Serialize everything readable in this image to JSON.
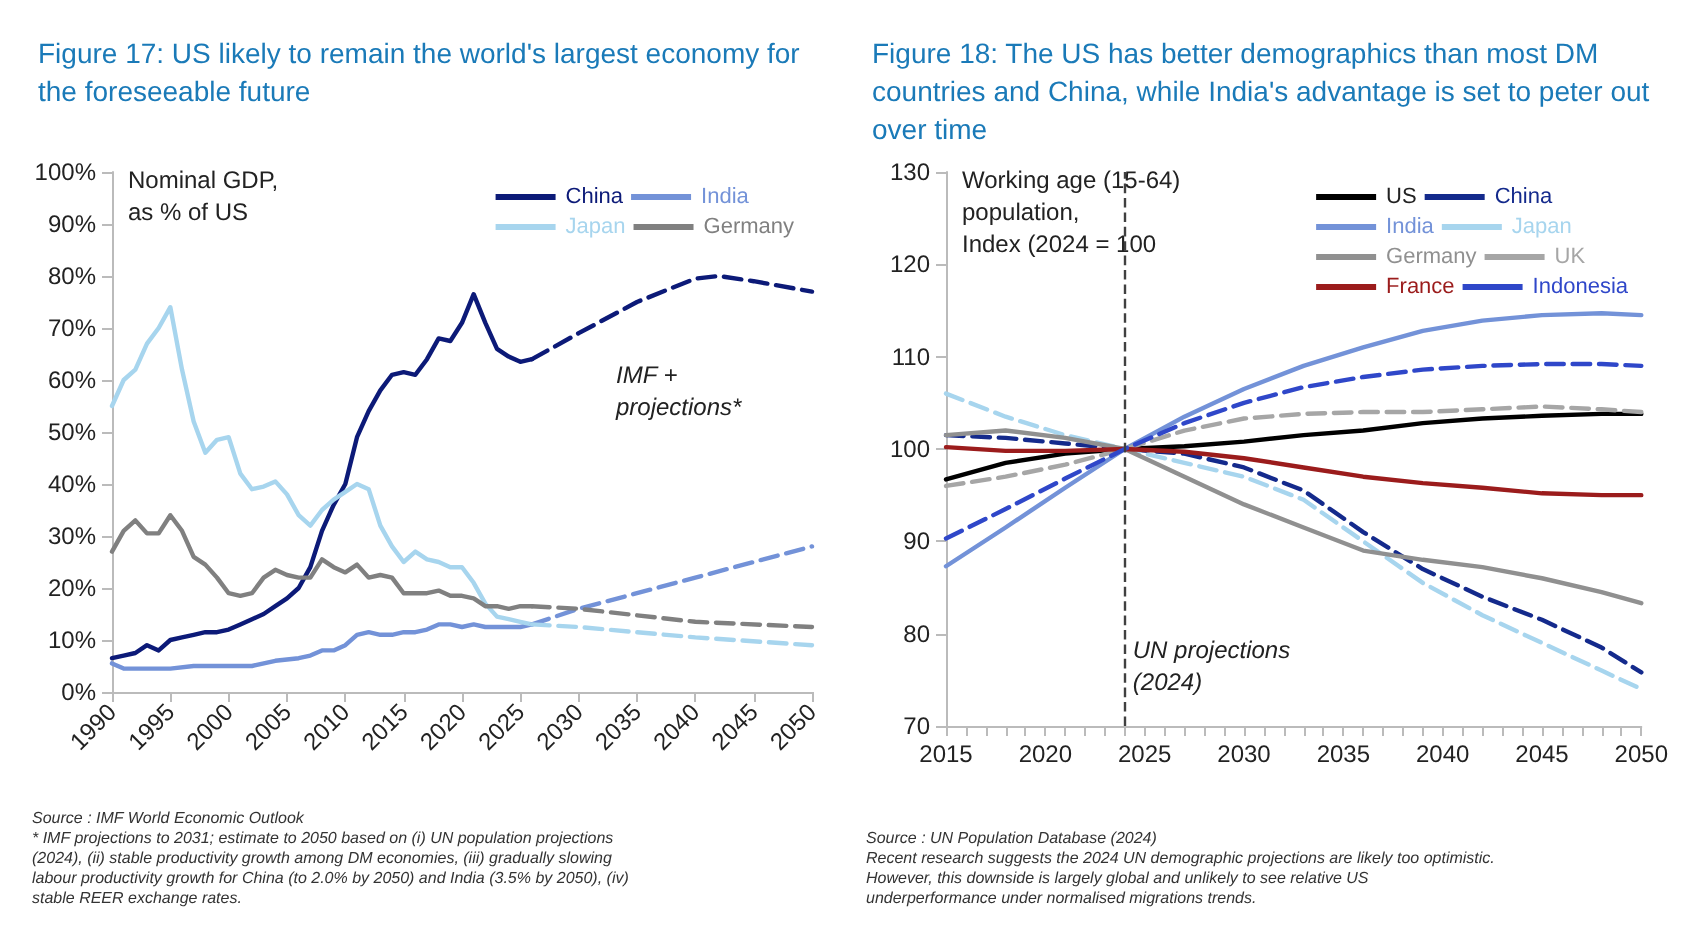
{
  "chart_data": [
    {
      "type": "line",
      "title": "Figure 17: US likely to remain the world's largest economy for the foreseeable future",
      "ylabel": "Nominal GDP,\nas % of US",
      "xlim": [
        1990,
        2050
      ],
      "xticks": [
        1990,
        1995,
        2000,
        2005,
        2010,
        2015,
        2020,
        2025,
        2030,
        2035,
        2040,
        2045,
        2050
      ],
      "ylim": [
        0,
        100
      ],
      "yticks": [
        {
          "value": 0,
          "label": "0%"
        },
        {
          "value": 10,
          "label": "10%"
        },
        {
          "value": 20,
          "label": "20%"
        },
        {
          "value": 30,
          "label": "30%"
        },
        {
          "value": 40,
          "label": "40%"
        },
        {
          "value": 50,
          "label": "50%"
        },
        {
          "value": 60,
          "label": "60%"
        },
        {
          "value": 70,
          "label": "70%"
        },
        {
          "value": 80,
          "label": "80%"
        },
        {
          "value": 90,
          "label": "90%"
        },
        {
          "value": 100,
          "label": "100%"
        }
      ],
      "grid": false,
      "legend": "top right",
      "marker": "none",
      "line_style": "solid",
      "series": [
        {
          "name": "China",
          "color": "#0c1a78",
          "x": [
            1990,
            1991,
            1992,
            1993,
            1994,
            1995,
            1996,
            1997,
            1998,
            1999,
            2000,
            2001,
            2002,
            2003,
            2004,
            2005,
            2006,
            2007,
            2008,
            2009,
            2010,
            2011,
            2012,
            2013,
            2014,
            2015,
            2016,
            2017,
            2018,
            2019,
            2020,
            2021,
            2022,
            2023,
            2024,
            2025,
            2026
          ],
          "values": [
            6.5,
            7,
            7.5,
            9,
            8,
            10,
            10.5,
            11,
            11.5,
            11.5,
            12,
            13,
            14,
            15,
            16.5,
            18,
            20,
            24,
            31,
            36,
            40,
            49,
            54,
            58,
            61,
            61.5,
            61,
            64,
            68,
            67.5,
            71,
            76.5,
            71,
            66,
            64.5,
            63.5,
            64
          ]
        },
        {
          "name": "India",
          "color": "#7392d8",
          "x": [
            1990,
            1991,
            1993,
            1995,
            1997,
            2000,
            2002,
            2004,
            2006,
            2007,
            2008,
            2009,
            2010,
            2011,
            2012,
            2013,
            2014,
            2015,
            2016,
            2017,
            2018,
            2019,
            2020,
            2021,
            2022,
            2023,
            2024,
            2025,
            2026
          ],
          "values": [
            5.5,
            4.5,
            4.5,
            4.5,
            5,
            5,
            5,
            6,
            6.5,
            7,
            8,
            8,
            9,
            11,
            11.5,
            11,
            11,
            11.5,
            11.5,
            12,
            13,
            13,
            12.5,
            13,
            12.5,
            12.5,
            12.5,
            12.5,
            13
          ]
        },
        {
          "name": "Japan",
          "color": "#a7d5ee",
          "x": [
            1990,
            1991,
            1992,
            1993,
            1994,
            1995,
            1996,
            1997,
            1998,
            1999,
            2000,
            2001,
            2002,
            2003,
            2004,
            2005,
            2006,
            2007,
            2008,
            2009,
            2010,
            2011,
            2012,
            2013,
            2014,
            2015,
            2016,
            2017,
            2018,
            2019,
            2020,
            2021,
            2022,
            2023,
            2024,
            2025,
            2026
          ],
          "values": [
            55,
            60,
            62,
            67,
            70,
            74,
            62,
            52,
            46,
            48.5,
            49,
            42,
            39,
            39.5,
            40.5,
            38,
            34,
            32,
            35,
            37,
            38.5,
            40,
            39,
            32,
            28,
            25,
            27,
            25.5,
            25,
            24,
            24,
            21,
            17,
            14.5,
            14,
            13.5,
            13
          ]
        },
        {
          "name": "Germany",
          "color": "#808080",
          "x": [
            1990,
            1991,
            1992,
            1993,
            1994,
            1995,
            1996,
            1997,
            1998,
            1999,
            2000,
            2001,
            2002,
            2003,
            2004,
            2005,
            2006,
            2007,
            2008,
            2009,
            2010,
            2011,
            2012,
            2013,
            2014,
            2015,
            2016,
            2017,
            2018,
            2019,
            2020,
            2021,
            2022,
            2023,
            2024,
            2025,
            2026
          ],
          "values": [
            27,
            31,
            33,
            30.5,
            30.5,
            34,
            31,
            26,
            24.5,
            22,
            19,
            18.5,
            19,
            22,
            23.5,
            22.5,
            22,
            22,
            25.5,
            24,
            23,
            24.5,
            22,
            22.5,
            22,
            19,
            19,
            19,
            19.5,
            18.5,
            18.5,
            18,
            16.5,
            16.5,
            16,
            16.5,
            16.5
          ]
        },
        {
          "color": "#0c1a78",
          "line_style": "dashed",
          "x": [
            2026,
            2030,
            2035,
            2040,
            2042,
            2045,
            2050
          ],
          "values": [
            64,
            69,
            75,
            79.5,
            80,
            79,
            77
          ]
        },
        {
          "color": "#7392d8",
          "line_style": "dashed",
          "x": [
            2026,
            2030,
            2040,
            2050
          ],
          "values": [
            13,
            16,
            22,
            28
          ]
        },
        {
          "color": "#a7d5ee",
          "line_style": "dashed",
          "x": [
            2026,
            2030,
            2040,
            2050
          ],
          "values": [
            13,
            12.5,
            10.5,
            9
          ]
        },
        {
          "color": "#808080",
          "line_style": "dashed",
          "x": [
            2026,
            2030,
            2040,
            2050
          ],
          "values": [
            16.5,
            16,
            13.5,
            12.5
          ]
        }
      ],
      "annotations": [
        "IMF +\nprojections*",
        "Source : IMF World Economic Outlook",
        "* IMF projections to 2031; estimate to 2050 based on (i) UN population projections (2024), (ii) stable productivity growth among DM economies, (iii) gradually slowing labour productivity growth for China (to 2.0% by 2050) and India (3.5% by 2050), (iv) stable REER exchange rates."
      ]
    },
    {
      "type": "line",
      "title": "Figure 18: The US has better demographics than most DM countries and China, while India's advantage is set to peter out over time",
      "ylabel": "Working age (15-64)\npopulation,\nIndex (2024 = 100",
      "xlim": [
        2015,
        2050
      ],
      "xticks": [
        2015,
        {
          "value": 2016,
          "label": null
        },
        {
          "value": 2017,
          "label": null
        },
        {
          "value": 2018,
          "label": null
        },
        {
          "value": 2019,
          "label": null
        },
        2020,
        {
          "value": 2021,
          "label": null
        },
        {
          "value": 2022,
          "label": null
        },
        {
          "value": 2023,
          "label": null
        },
        {
          "value": 2024,
          "label": null
        },
        2025,
        {
          "value": 2026,
          "label": null
        },
        {
          "value": 2027,
          "label": null
        },
        {
          "value": 2028,
          "label": null
        },
        {
          "value": 2029,
          "label": null
        },
        2030,
        {
          "value": 2031,
          "label": null
        },
        {
          "value": 2032,
          "label": null
        },
        {
          "value": 2033,
          "label": null
        },
        {
          "value": 2034,
          "label": null
        },
        2035,
        {
          "value": 2036,
          "label": null
        },
        {
          "value": 2037,
          "label": null
        },
        {
          "value": 2038,
          "label": null
        },
        {
          "value": 2039,
          "label": null
        },
        2040,
        {
          "value": 2041,
          "label": null
        },
        {
          "value": 2042,
          "label": null
        },
        {
          "value": 2043,
          "label": null
        },
        {
          "value": 2044,
          "label": null
        },
        2045,
        {
          "value": 2046,
          "label": null
        },
        {
          "value": 2047,
          "label": null
        },
        {
          "value": 2048,
          "label": null
        },
        {
          "value": 2049,
          "label": null
        },
        2050
      ],
      "ylim": [
        70,
        130
      ],
      "yticks": [
        70,
        80,
        90,
        100,
        110,
        120,
        130
      ],
      "grid": false,
      "legend": "top right",
      "marker": "none",
      "line_style": "solid",
      "ref_lines": [
        {
          "axis": "x",
          "value": 2024,
          "color": "#404040",
          "line_style": "dashed"
        }
      ],
      "series": [
        {
          "name": "US",
          "color": "#000000",
          "x": [
            2015,
            2018,
            2021,
            2024,
            2027,
            2030,
            2033,
            2036,
            2039,
            2042,
            2045,
            2048,
            2050
          ],
          "values": [
            96.7,
            98.5,
            99.5,
            100,
            100.3,
            100.8,
            101.5,
            102,
            102.8,
            103.3,
            103.6,
            103.8,
            103.8
          ]
        },
        {
          "name": "China",
          "color": "#142a8c",
          "line_style": "dashed",
          "x": [
            2015,
            2018,
            2021,
            2024,
            2027,
            2030,
            2033,
            2036,
            2039,
            2042,
            2045,
            2048,
            2050
          ],
          "values": [
            101.5,
            101.2,
            100.6,
            100,
            99.5,
            98,
            95.5,
            91,
            87,
            84,
            81.5,
            78.5,
            75.8
          ]
        },
        {
          "name": "India",
          "color": "#7392d8",
          "x": [
            2015,
            2018,
            2021,
            2024,
            2027,
            2030,
            2033,
            2036,
            2039,
            2042,
            2045,
            2048,
            2050
          ],
          "values": [
            87.3,
            91.5,
            95.8,
            100,
            103.5,
            106.5,
            109,
            111,
            112.8,
            113.9,
            114.5,
            114.7,
            114.5
          ]
        },
        {
          "name": "Japan",
          "color": "#a7d5ee",
          "line_style": "dashed",
          "x": [
            2015,
            2018,
            2021,
            2024,
            2027,
            2030,
            2033,
            2036,
            2039,
            2042,
            2045,
            2048,
            2050
          ],
          "values": [
            106,
            103.5,
            101.5,
            100,
            98.5,
            97,
            94.5,
            90,
            85.5,
            82,
            79,
            76,
            74
          ]
        },
        {
          "name": "Germany",
          "color": "#909090",
          "x": [
            2015,
            2018,
            2021,
            2024,
            2027,
            2030,
            2033,
            2036,
            2039,
            2042,
            2045,
            2048,
            2050
          ],
          "values": [
            101.5,
            102,
            101.2,
            100,
            97,
            94,
            91.5,
            89,
            88,
            87.2,
            86,
            84.5,
            83.3
          ]
        },
        {
          "name": "UK",
          "color": "#a6a6a6",
          "line_style": "dashed",
          "x": [
            2015,
            2018,
            2021,
            2024,
            2027,
            2030,
            2033,
            2036,
            2039,
            2042,
            2045,
            2048,
            2050
          ],
          "values": [
            96,
            97,
            98.3,
            100,
            102,
            103.3,
            103.8,
            104,
            104,
            104.3,
            104.6,
            104.3,
            104
          ]
        },
        {
          "name": "France",
          "color": "#9b1c1c",
          "x": [
            2015,
            2018,
            2021,
            2024,
            2027,
            2030,
            2033,
            2036,
            2039,
            2042,
            2045,
            2048,
            2050
          ],
          "values": [
            100.2,
            99.8,
            99.8,
            100,
            99.7,
            99,
            98,
            97,
            96.3,
            95.8,
            95.2,
            95,
            95
          ]
        },
        {
          "name": "Indonesia",
          "color": "#2f47c9",
          "line_style": "dashed",
          "x": [
            2015,
            2018,
            2021,
            2024,
            2027,
            2030,
            2033,
            2036,
            2039,
            2042,
            2045,
            2048,
            2050
          ],
          "values": [
            90.3,
            93.5,
            96.8,
            100,
            102.8,
            105,
            106.7,
            107.8,
            108.6,
            109,
            109.2,
            109.2,
            109
          ]
        }
      ],
      "annotations": [
        {
          "text": "UN projections\n(2024)",
          "x": 2024,
          "y": 80
        },
        "Source : UN Population Database (2024)",
        "Recent research suggests the 2024 UN demographic projections are likely too optimistic. However, this downside is largely global and unlikely to see relative US underperformance under normalised migrations trends."
      ]
    }
  ]
}
